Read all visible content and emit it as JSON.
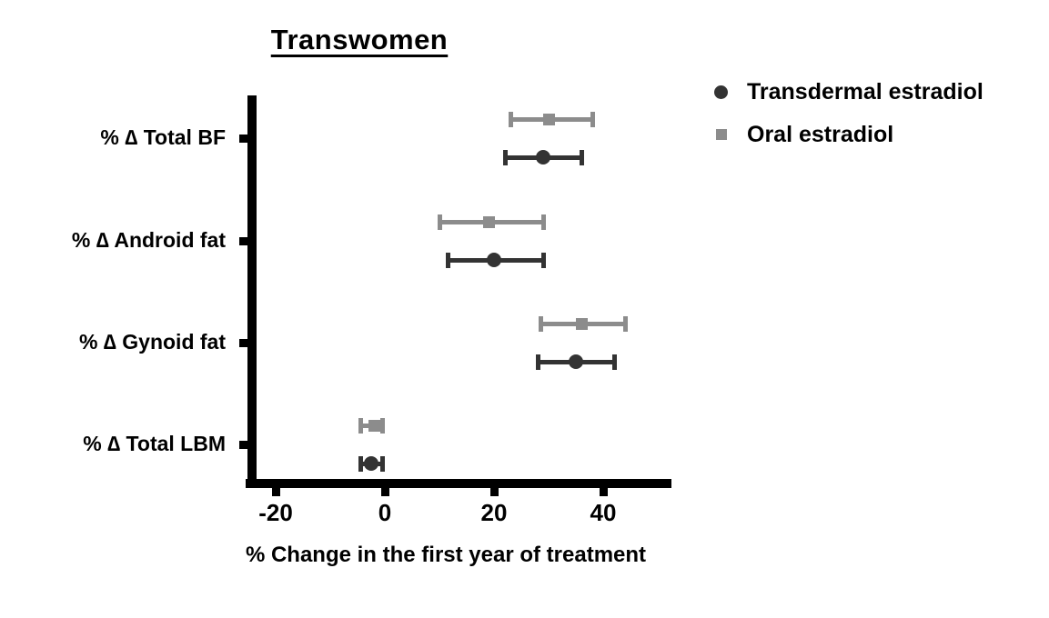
{
  "chart_data": {
    "type": "scatter",
    "variant": "forest-plot-dots-with-error-bars",
    "title": "Transwomen",
    "xlabel": "% Change in the first year of treatment",
    "ylabel": "",
    "categories": [
      "% ∆ Total BF",
      "% ∆ Android fat",
      "% ∆ Gynoid fat",
      "% ∆ Total LBM"
    ],
    "x_ticks": [
      -20,
      0,
      20,
      40
    ],
    "x_tick_labels": [
      "-20",
      "0",
      "20",
      "40"
    ],
    "xlim": [
      -26,
      52
    ],
    "grid": false,
    "legend_position": "top-right",
    "axis_color": "#000000",
    "text_color": "#000000",
    "background_color": "#ffffff",
    "series": [
      {
        "name": "Transdermal estradiol",
        "marker": "circle",
        "color": "#333333",
        "values": [
          {
            "category": "% ∆ Total BF",
            "mean": 29,
            "lo": 22,
            "hi": 36
          },
          {
            "category": "% ∆ Android fat",
            "mean": 20,
            "lo": 11.5,
            "hi": 29
          },
          {
            "category": "% ∆ Gynoid fat",
            "mean": 35,
            "lo": 28,
            "hi": 42
          },
          {
            "category": "% ∆ Total LBM",
            "mean": -2.5,
            "lo": -4.5,
            "hi": -0.5
          }
        ]
      },
      {
        "name": "Oral estradiol",
        "marker": "square",
        "color": "#8c8c8c",
        "values": [
          {
            "category": "% ∆ Total BF",
            "mean": 30,
            "lo": 23,
            "hi": 38
          },
          {
            "category": "% ∆ Android fat",
            "mean": 19,
            "lo": 10,
            "hi": 29
          },
          {
            "category": "% ∆ Gynoid fat",
            "mean": 36,
            "lo": 28.5,
            "hi": 44
          },
          {
            "category": "% ∆ Total LBM",
            "mean": -2,
            "lo": -4.5,
            "hi": -0.5
          }
        ]
      }
    ]
  }
}
